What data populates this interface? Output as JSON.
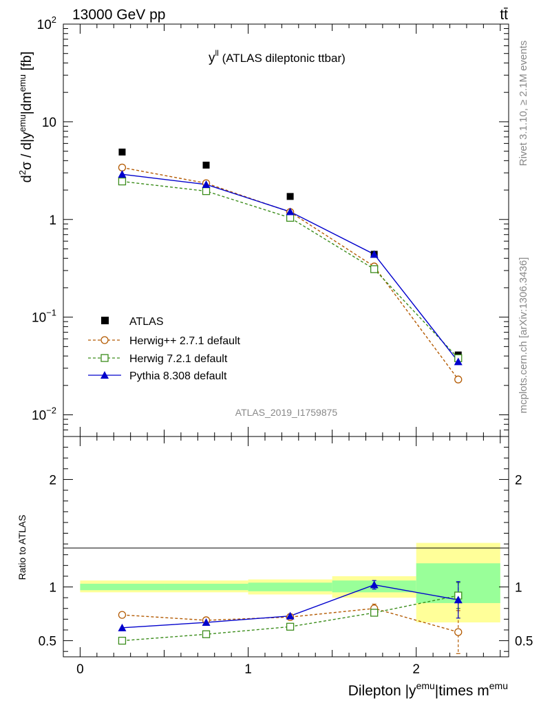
{
  "header": {
    "energy": "13000 GeV pp",
    "process": "tt̄"
  },
  "side_labels": {
    "rivet": "Rivet 3.1.10, ≥ 2.1M events",
    "source": "mcplots.cern.ch [arXiv:1306.3436]"
  },
  "chart_data": {
    "type": "scatter",
    "title": "y^ll (ATLAS dileptonic ttbar)",
    "title_main": "y",
    "title_sup": "ll",
    "title_rest": " (ATLAS dileptonic ttbar)",
    "analysis_id": "ATLAS_2019_I1759875",
    "xlabel": "Dilepton |y^emu|times m^emu",
    "xlabel_parts": [
      "Dilepton |y",
      "emu",
      "|times m",
      "emu"
    ],
    "ylabel": "d²σ / d|y^emu|dm^emu [fb]",
    "ylabel_parts": [
      "d",
      "2",
      "σ / d|y",
      "emu",
      "|dm",
      "emu",
      " [fb]"
    ],
    "ratio_ylabel": "Ratio to ATLAS",
    "xlim": [
      -0.1,
      2.55
    ],
    "ylim": [
      0.006,
      100
    ],
    "yscale": "log",
    "ratio_ylim": [
      0.35,
      2.4
    ],
    "x_ticks": [
      0,
      1,
      2
    ],
    "x_tick_labels": [
      "0",
      "1",
      "2"
    ],
    "y_ticks": [
      0.01,
      0.1,
      1,
      10,
      100
    ],
    "y_tick_labels": [
      {
        "base": "10",
        "exp": "−2"
      },
      {
        "base": "10",
        "exp": "−1"
      },
      {
        "base": "1",
        "exp": ""
      },
      {
        "base": "10",
        "exp": ""
      },
      {
        "base": "10",
        "exp": "2"
      }
    ],
    "ratio_ticks": [
      0.5,
      1,
      2
    ],
    "ratio_tick_labels": [
      "0.5",
      "1",
      "2"
    ],
    "bins": [
      [
        0,
        0.5
      ],
      [
        0.5,
        1.0
      ],
      [
        1.0,
        1.5
      ],
      [
        1.5,
        2.0
      ],
      [
        2.0,
        2.5
      ]
    ],
    "x": [
      0.25,
      0.75,
      1.25,
      1.75,
      2.25
    ],
    "data": {
      "name": "ATLAS",
      "values": [
        4.9,
        3.6,
        1.72,
        0.44,
        0.041
      ]
    },
    "ratio_bands": {
      "stat_lo": [
        0.97,
        0.97,
        0.96,
        0.95,
        0.85
      ],
      "stat_hi": [
        1.03,
        1.03,
        1.04,
        1.06,
        1.22
      ],
      "tot_lo": [
        0.95,
        0.95,
        0.93,
        0.9,
        0.67
      ],
      "tot_hi": [
        1.06,
        1.06,
        1.07,
        1.1,
        1.41
      ]
    },
    "series": [
      {
        "name": "Herwig++ 2.7.1 default",
        "color": "#b35900",
        "marker": "circle-open",
        "linestyle": "dashed",
        "values": [
          3.4,
          2.35,
          1.19,
          0.33,
          0.023
        ],
        "ratio": [
          0.74,
          0.69,
          0.72,
          0.8,
          0.58
        ],
        "ratio_err": [
          0.0,
          0.0,
          0.02,
          0.04,
          0.2
        ]
      },
      {
        "name": "Herwig 7.2.1 default",
        "color": "#3a8c1a",
        "marker": "square-open",
        "linestyle": "dashed",
        "values": [
          2.45,
          1.95,
          1.04,
          0.31,
          0.038
        ],
        "ratio": [
          0.5,
          0.56,
          0.63,
          0.76,
          0.92
        ],
        "ratio_err": [
          0.0,
          0.0,
          0.0,
          0.03,
          0.12
        ]
      },
      {
        "name": "Pythia 8.308 default",
        "color": "#0000cc",
        "marker": "triangle-filled",
        "linestyle": "solid",
        "values": [
          2.9,
          2.28,
          1.2,
          0.44,
          0.035
        ],
        "ratio": [
          0.62,
          0.67,
          0.73,
          1.02,
          0.88
        ],
        "ratio_err": [
          0.0,
          0.0,
          0.02,
          0.04,
          0.17
        ]
      }
    ],
    "legend_position": "lower-left"
  },
  "colors": {
    "band_stat": "#99ff99",
    "band_total": "#ffff99",
    "data": "#000000",
    "watermark": "#999999"
  }
}
